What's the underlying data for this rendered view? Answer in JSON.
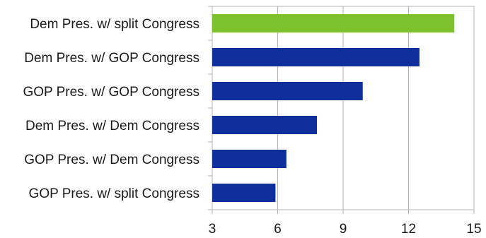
{
  "chart_data": {
    "type": "bar",
    "orientation": "horizontal",
    "title": "",
    "xlabel": "",
    "ylabel": "",
    "categories": [
      "Dem Pres. w/ split Congress",
      "Dem Pres. w/ GOP Congress",
      "GOP Pres. w/ GOP Congress",
      "Dem Pres. w/ Dem Congress",
      "GOP Pres. w/ Dem Congress",
      "GOP Pres. w/ split Congress"
    ],
    "values": [
      14.1,
      12.5,
      9.9,
      7.8,
      6.4,
      5.9
    ],
    "bar_colors": [
      "#7dc22e",
      "#0f2f9c",
      "#0f2f9c",
      "#0f2f9c",
      "#0f2f9c",
      "#0f2f9c"
    ],
    "xlim": [
      3,
      15
    ],
    "xticks": [
      3,
      6,
      9,
      12,
      15
    ],
    "grid": "vertical",
    "legend": "none"
  }
}
